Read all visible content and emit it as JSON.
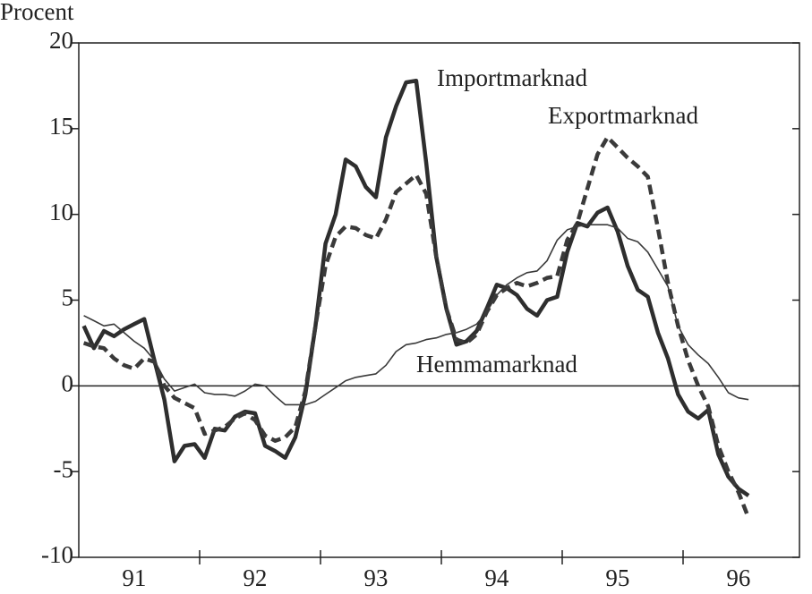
{
  "chart_data": {
    "type": "line",
    "y_label": "Procent",
    "categories": [
      null,
      null,
      null,
      null,
      null,
      "91",
      null,
      null,
      null,
      null,
      null,
      null,
      null,
      null,
      null,
      null,
      null,
      "92",
      null,
      null,
      null,
      null,
      null,
      null,
      null,
      null,
      null,
      null,
      null,
      "93",
      null,
      null,
      null,
      null,
      null,
      null,
      null,
      null,
      null,
      null,
      null,
      "94",
      null,
      null,
      null,
      null,
      null,
      null,
      null,
      null,
      null,
      null,
      null,
      "95",
      null,
      null,
      null,
      null,
      null,
      null,
      null,
      null,
      null,
      null,
      null,
      "96",
      null
    ],
    "series": [
      {
        "name": "Importmarknad",
        "color": "#2e2e2e",
        "dashed": false,
        "values": [
          3.5,
          2.2,
          3.2,
          2.9,
          3.3,
          3.6,
          3.9,
          1.5,
          -0.8,
          -4.4,
          -3.5,
          -3.4,
          -4.2,
          -2.5,
          -2.6,
          -1.8,
          -1.5,
          -1.6,
          -3.5,
          -3.8,
          -4.2,
          -3.0,
          -0.5,
          3.5,
          8.3,
          10,
          13.2,
          12.8,
          11.6,
          11,
          14.5,
          16.3,
          17.7,
          17.8,
          13,
          7.5,
          4.5,
          2.4,
          2.6,
          3.2,
          4.5,
          5.9,
          5.7,
          5.3,
          4.5,
          4.1,
          5,
          5.2,
          7.8,
          9.5,
          9.3,
          10.1,
          10.4,
          9,
          7,
          5.6,
          5.2,
          3.1,
          1.6,
          -0.5,
          -1.5,
          -1.9,
          -1.4,
          -4,
          -5.3,
          -6,
          -6.4
        ]
      },
      {
        "name": "Exportmarknad",
        "color": "#3a3a3a",
        "dashed": true,
        "values": [
          2.5,
          2.3,
          2.2,
          1.6,
          1.2,
          1.0,
          1.6,
          1.4,
          0,
          -0.7,
          -1.0,
          -1.3,
          -2.8,
          -2.6,
          -2.4,
          -1.9,
          -1.6,
          -2.0,
          -2.9,
          -3.2,
          -3.0,
          -2.4,
          -0.3,
          3.5,
          7.0,
          8.7,
          9.3,
          9.2,
          8.8,
          8.6,
          9.7,
          11.3,
          11.8,
          12.3,
          11.2,
          7.5,
          4.5,
          2.7,
          2.5,
          3.0,
          4.3,
          5.3,
          5.7,
          6.0,
          5.8,
          6.0,
          6.3,
          6.4,
          8.5,
          9.5,
          11.5,
          13.5,
          14.5,
          13.9,
          13.3,
          12.8,
          12.2,
          9.2,
          6.0,
          3.5,
          1.5,
          0,
          -1.2,
          -3.5,
          -5.0,
          -6.2,
          -7.7
        ]
      },
      {
        "name": "Hemmamarknad",
        "color": "#3a3a3a",
        "dashed": false,
        "values": [
          4.1,
          3.8,
          3.5,
          3.6,
          3.1,
          2.6,
          2.2,
          1.5,
          0.4,
          -0.3,
          -0.1,
          0.1,
          -0.4,
          -0.5,
          -0.5,
          -0.6,
          -0.3,
          0.1,
          0,
          -0.6,
          -1.1,
          -1.1,
          -1.1,
          -0.9,
          -0.5,
          -0.1,
          0.3,
          0.5,
          0.6,
          0.7,
          1.2,
          2.0,
          2.4,
          2.5,
          2.7,
          2.8,
          3.0,
          3.1,
          3.3,
          3.6,
          4.3,
          5.3,
          5.9,
          6.3,
          6.6,
          6.7,
          7.3,
          8.5,
          9.1,
          9.3,
          9.4,
          9.4,
          9.4,
          9.2,
          8.6,
          8.4,
          7.8,
          6.8,
          5.8,
          3.5,
          2.4,
          1.8,
          1.3,
          0.5,
          -0.4,
          -0.7,
          -0.8
        ]
      }
    ],
    "ylim": [
      -10,
      20
    ],
    "yticks": [
      -10,
      -5,
      0,
      5,
      10,
      15,
      20
    ]
  }
}
